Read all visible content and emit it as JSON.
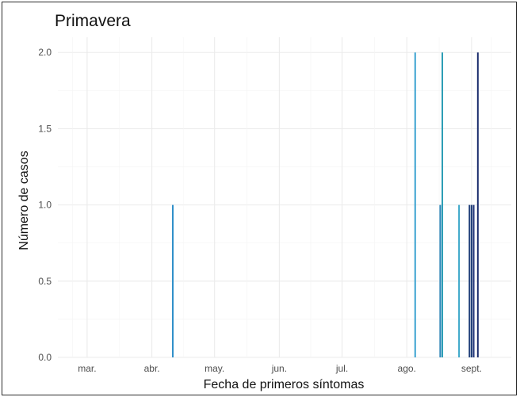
{
  "chart_data": {
    "type": "bar",
    "title": "Primavera",
    "xlabel": "Fecha de primeros síntomas",
    "ylabel": "Número de casos",
    "ylim": [
      0,
      2.1
    ],
    "yticks": [
      "0.0",
      "0.5",
      "1.0",
      "1.5",
      "2.0"
    ],
    "ytick_values": [
      0,
      0.5,
      1.0,
      1.5,
      2.0
    ],
    "xlim": [
      "2020-02-16",
      "2020-09-20"
    ],
    "xticks": [
      {
        "label": "mar.",
        "date": "2020-03-01"
      },
      {
        "label": "abr.",
        "date": "2020-04-01"
      },
      {
        "label": "may.",
        "date": "2020-05-01"
      },
      {
        "label": "jun.",
        "date": "2020-06-01"
      },
      {
        "label": "jul.",
        "date": "2020-07-01"
      },
      {
        "label": "ago.",
        "date": "2020-08-01"
      },
      {
        "label": "sept.",
        "date": "2020-09-01"
      }
    ],
    "grid": true,
    "legend": "none",
    "bars": [
      {
        "date": "2020-04-11",
        "value": 1,
        "color": "#2f8fc9"
      },
      {
        "date": "2020-08-05",
        "value": 2,
        "color": "#3ba2d0"
      },
      {
        "date": "2020-08-17",
        "value": 1,
        "color": "#2b86b9"
      },
      {
        "date": "2020-08-18",
        "value": 2,
        "color": "#2c9db5"
      },
      {
        "date": "2020-08-26",
        "value": 1,
        "color": "#3aa7c9"
      },
      {
        "date": "2020-08-31",
        "value": 1,
        "color": "#1f3e78"
      },
      {
        "date": "2020-09-01",
        "value": 1,
        "color": "#1f3e78"
      },
      {
        "date": "2020-09-02",
        "value": 1,
        "color": "#23367a"
      },
      {
        "date": "2020-09-04",
        "value": 2,
        "color": "#1d2f6e"
      }
    ]
  }
}
